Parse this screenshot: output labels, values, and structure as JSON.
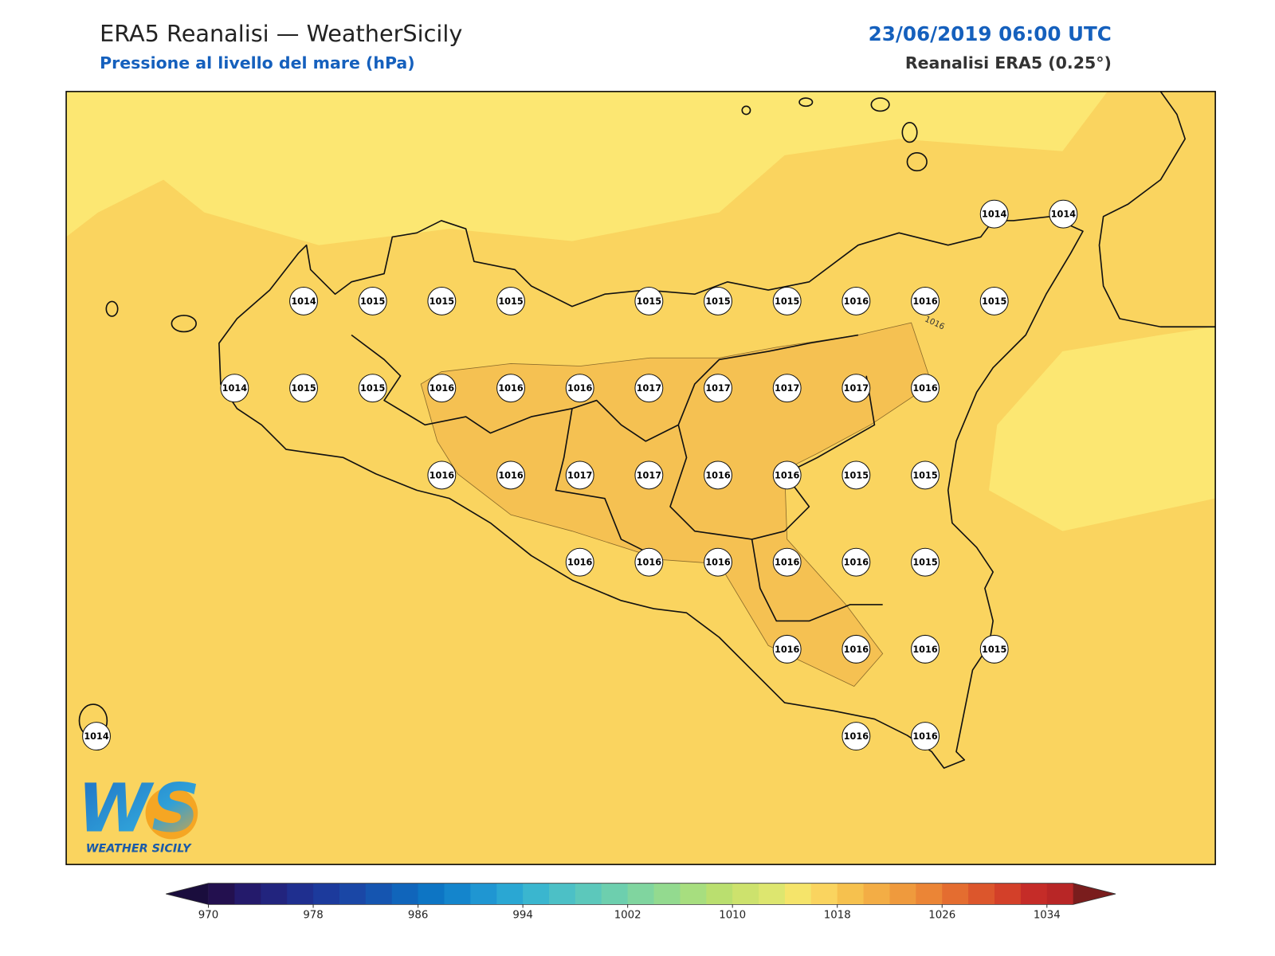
{
  "header": {
    "title": "ERA5 Reanalisi — WeatherSicily",
    "subtitle": "Pressione al livello del mare (hPa)",
    "datetime": "23/06/2019 06:00 UTC",
    "source": "Reanalisi ERA5 (0.25°)"
  },
  "map": {
    "stations": [
      1014,
      1014,
      1014,
      1015,
      1015,
      1015,
      1015,
      1015,
      1015,
      1016,
      1016,
      1015,
      1014,
      1015,
      1015,
      1016,
      1016,
      1016,
      1017,
      1017,
      1017,
      1017,
      1016,
      1016,
      1016,
      1017,
      1017,
      1016,
      1016,
      1015,
      1015,
      1016,
      1016,
      1016,
      1016,
      1016,
      1015,
      1016,
      1016,
      1016,
      1015,
      1014,
      1016,
      1016
    ],
    "contour_label": "1016"
  },
  "logo": {
    "mark": "WS",
    "name": "WEATHER SICILY"
  },
  "colorbar": {
    "lim": [
      970,
      1036
    ],
    "ticks": [
      970,
      978,
      986,
      994,
      1002,
      1010,
      1018,
      1026,
      1034
    ],
    "colors": [
      "#23104f",
      "#241a6b",
      "#22247e",
      "#1f2f8f",
      "#1c3a9c",
      "#1a47a6",
      "#1555b0",
      "#1065bb",
      "#0d75c4",
      "#1485cc",
      "#1f96d2",
      "#2aa7d3",
      "#3ab6cf",
      "#4cc0c6",
      "#5cc8bb",
      "#6dcfae",
      "#80d59f",
      "#93da8f",
      "#a7de7f",
      "#badf6f",
      "#cde26d",
      "#dde66f",
      "#f5e46a",
      "#fad45f",
      "#f6c14e",
      "#f3ad45",
      "#ef9a3d",
      "#eb8536",
      "#e46d30",
      "#dc562c",
      "#d34029",
      "#c52c28",
      "#b82626"
    ],
    "under": "#1a0d3d",
    "over": "#7a1d1d"
  }
}
